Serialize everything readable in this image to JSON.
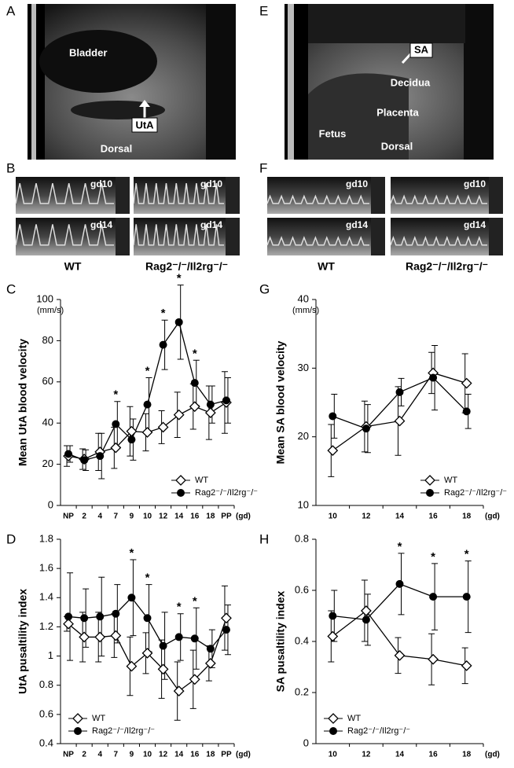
{
  "figure": {
    "panel_labels": [
      "A",
      "B",
      "C",
      "D",
      "E",
      "F",
      "G",
      "H"
    ],
    "ultrasound_A": [
      "Bladder",
      "UtA",
      "Dorsal"
    ],
    "ultrasound_E": [
      "SA",
      "Decidua",
      "Placenta",
      "Fetus",
      "Dorsal"
    ],
    "doppler_gd_labels": [
      "gd10",
      "gd14"
    ],
    "doppler_groups": [
      "WT",
      "Rag2⁻/⁻/Il2rg⁻/⁻"
    ]
  },
  "chart_data": [
    {
      "type": "line",
      "y_label": "Mean UtA blood velocity",
      "y_unit": "(mm/s)",
      "x_unit": "(gd)",
      "categories": [
        "NP",
        "2",
        "4",
        "7",
        "9",
        "10",
        "12",
        "14",
        "16",
        "18",
        "PP"
      ],
      "ylim": [
        0,
        100
      ],
      "yticks": [
        0,
        20,
        40,
        60,
        80,
        100
      ],
      "legend": "lower right",
      "significance": [
        null,
        null,
        null,
        "*",
        null,
        "*",
        "*",
        "*",
        "*",
        null,
        null
      ],
      "series": [
        {
          "name": "WT",
          "color": "#000000",
          "marker": "diamond-open",
          "values": [
            24,
            22.5,
            26,
            28,
            36,
            35.5,
            38,
            44,
            48,
            45,
            50
          ],
          "errors": [
            5,
            5,
            9,
            10,
            12,
            9,
            8,
            11,
            11,
            13,
            15
          ]
        },
        {
          "name": "Rag2⁻/⁻/Il2rg⁻/⁻",
          "color": "#000000",
          "marker": "circle-filled",
          "values": [
            25,
            22,
            24,
            39.5,
            32,
            49,
            78,
            89,
            59.5,
            49,
            51
          ],
          "errors": [
            4,
            5,
            11,
            11,
            10,
            13,
            12,
            18,
            11,
            9,
            11
          ]
        }
      ]
    },
    {
      "type": "line",
      "y_label": "UtA pusaltility index",
      "x_unit": "(gd)",
      "categories": [
        "NP",
        "2",
        "4",
        "7",
        "9",
        "10",
        "12",
        "14",
        "16",
        "18",
        "PP"
      ],
      "ylim": [
        0.4,
        1.8
      ],
      "yticks": [
        0.4,
        0.6,
        0.8,
        1,
        1.2,
        1.4,
        1.6,
        1.8
      ],
      "legend": "lower left",
      "significance": [
        null,
        null,
        null,
        null,
        "*",
        "*",
        null,
        "*",
        "*",
        null,
        null
      ],
      "series": [
        {
          "name": "WT",
          "color": "#000000",
          "marker": "diamond-open",
          "values": [
            1.22,
            1.13,
            1.13,
            1.14,
            0.93,
            1.02,
            0.91,
            0.76,
            0.84,
            0.95,
            1.26
          ],
          "errors": [
            0.05,
            0.17,
            0.17,
            0.15,
            0.2,
            0.14,
            0.2,
            0.2,
            0.2,
            0.12,
            0.22
          ]
        },
        {
          "name": "Rag2⁻/⁻/Il2rg⁻/⁻",
          "color": "#000000",
          "marker": "circle-filled",
          "values": [
            1.27,
            1.26,
            1.27,
            1.29,
            1.4,
            1.26,
            1.07,
            1.13,
            1.12,
            1.05,
            1.18
          ],
          "errors": [
            0.3,
            0.2,
            0.27,
            0.2,
            0.26,
            0.23,
            0.23,
            0.16,
            0.21,
            0.13,
            0.17
          ]
        }
      ]
    },
    {
      "type": "line",
      "y_label": "Mean SA blood velocity",
      "y_unit": "(mm/s)",
      "x_unit": "(gd)",
      "categories": [
        "10",
        "12",
        "14",
        "16",
        "18"
      ],
      "ylim": [
        10,
        40
      ],
      "yticks": [
        10,
        20,
        30,
        40
      ],
      "legend": "lower right",
      "significance": [
        null,
        null,
        null,
        null,
        null
      ],
      "series": [
        {
          "name": "WT",
          "color": "#000000",
          "marker": "diamond-open",
          "values": [
            18,
            21.5,
            22.3,
            29.3,
            27.8
          ],
          "errors": [
            3.8,
            3.7,
            5,
            3,
            4.3
          ]
        },
        {
          "name": "Rag2⁻/⁻/Il2rg⁻/⁻",
          "color": "#000000",
          "marker": "circle-filled",
          "values": [
            23,
            21.2,
            26.5,
            28.6,
            23.7
          ],
          "errors": [
            3.2,
            3.5,
            2,
            4.7,
            2.5
          ]
        }
      ]
    },
    {
      "type": "line",
      "y_label": "SA pusaltility index",
      "x_unit": "(gd)",
      "categories": [
        "10",
        "12",
        "14",
        "16",
        "18"
      ],
      "ylim": [
        0,
        0.8
      ],
      "yticks": [
        0,
        0.2,
        0.4,
        0.6,
        0.8
      ],
      "legend": "lower left",
      "significance": [
        null,
        null,
        "*",
        "*",
        "*"
      ],
      "series": [
        {
          "name": "WT",
          "color": "#000000",
          "marker": "diamond-open",
          "values": [
            0.42,
            0.52,
            0.345,
            0.33,
            0.305
          ],
          "errors": [
            0.1,
            0.12,
            0.07,
            0.1,
            0.07
          ]
        },
        {
          "name": "Rag2⁻/⁻/Il2rg⁻/⁻",
          "color": "#000000",
          "marker": "circle-filled",
          "values": [
            0.5,
            0.485,
            0.625,
            0.575,
            0.575
          ],
          "errors": [
            0.1,
            0.1,
            0.12,
            0.13,
            0.14
          ]
        }
      ]
    }
  ]
}
